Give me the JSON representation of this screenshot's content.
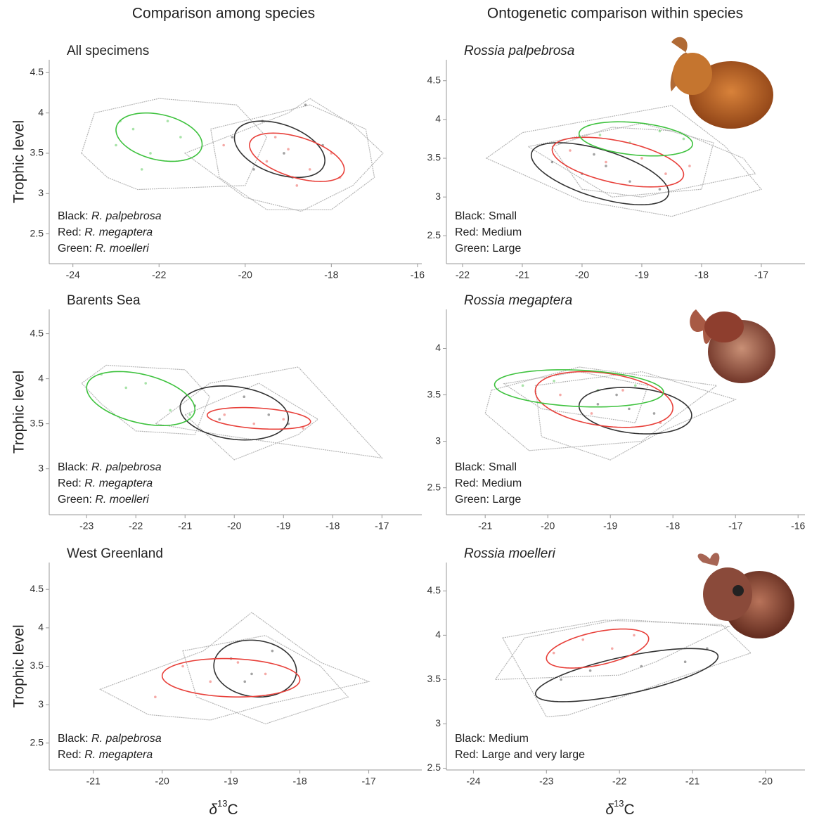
{
  "column_titles": [
    "Comparison among species",
    "Ontogenetic comparison within species"
  ],
  "y_label": "Trophic level",
  "x_label": {
    "symbol": "δ",
    "superscript": "13",
    "element": "C"
  },
  "chart_data": [
    {
      "type": "scatter",
      "title": "All specimens",
      "title_italic": false,
      "legend": [
        {
          "label": "Black: ",
          "name": "R. palpebrosa"
        },
        {
          "label": "Red: ",
          "name": "R. megaptera"
        },
        {
          "label": "Green: ",
          "name": "R. moelleri"
        }
      ],
      "xlim": [
        -24.55,
        -15.9
      ],
      "xticks": [
        -24,
        -22,
        -20,
        -18,
        -16
      ],
      "ylim": [
        2.13,
        4.66
      ],
      "yticks": [
        2.5,
        3.0,
        3.5,
        4.0,
        4.5
      ],
      "groups": [
        {
          "color": "#333333",
          "ellipse": {
            "cx": -19.2,
            "cy": 3.55,
            "rx": 1.05,
            "ry": 0.35,
            "rho": -0.4
          },
          "hull": {
            "x": [
              -21.4,
              -19,
              -18.5,
              -17.5,
              -16.8,
              -17.5,
              -18.7,
              -20
            ],
            "y": [
              3.5,
              4.0,
              4.18,
              3.85,
              3.5,
              3.1,
              2.78,
              2.95
            ]
          },
          "points": {
            "x": [
              -20.3,
              -19.6,
              -19.1,
              -18.6,
              -18.2,
              -19.8,
              -18.9
            ],
            "y": [
              3.7,
              3.9,
              3.5,
              4.1,
              3.6,
              3.3,
              3.2
            ]
          }
        },
        {
          "color": "#e8403a",
          "ellipse": {
            "cx": -18.8,
            "cy": 3.45,
            "rx": 1.1,
            "ry": 0.3,
            "rho": -0.5
          },
          "hull": {
            "x": [
              -20.8,
              -18.5,
              -17.2,
              -17,
              -18,
              -19.5,
              -20.6
            ],
            "y": [
              3.8,
              4.1,
              3.8,
              3.2,
              2.8,
              2.8,
              3.2
            ]
          },
          "points": {
            "x": [
              -20.5,
              -19.5,
              -19,
              -18.5,
              -18,
              -17.8,
              -18.8,
              -19.3
            ],
            "y": [
              3.6,
              3.4,
              3.55,
              3.3,
              3.5,
              3.2,
              3.1,
              3.7
            ]
          }
        },
        {
          "color": "#3ec23e",
          "ellipse": {
            "cx": -22,
            "cy": 3.7,
            "rx": 1.0,
            "ry": 0.3,
            "rho": -0.3
          },
          "hull": {
            "x": [
              -23.8,
              -23.5,
              -22,
              -20.2,
              -19.5,
              -20,
              -22.5,
              -23.2
            ],
            "y": [
              3.5,
              4.0,
              4.18,
              4.1,
              3.7,
              3.1,
              3.05,
              3.2
            ]
          },
          "points": {
            "x": [
              -23,
              -22.6,
              -22.2,
              -21.8,
              -21.5,
              -22.9,
              -22.4
            ],
            "y": [
              3.6,
              3.8,
              3.5,
              3.9,
              3.7,
              3.9,
              3.3
            ]
          }
        }
      ]
    },
    {
      "type": "scatter",
      "title": "Rossia palpebrosa",
      "title_italic": true,
      "legend": [
        {
          "label": "Black: Small"
        },
        {
          "label": "Red: Medium"
        },
        {
          "label": "Green: Large"
        }
      ],
      "xlim": [
        -22.27,
        -16.27
      ],
      "xticks": [
        -22,
        -21,
        -20,
        -19,
        -18,
        -17
      ],
      "ylim": [
        2.14,
        4.77
      ],
      "yticks": [
        2.5,
        3.0,
        3.5,
        4.0,
        4.5
      ],
      "groups": [
        {
          "color": "#333333",
          "ellipse": {
            "cx": -19.7,
            "cy": 3.3,
            "rx": 1.15,
            "ry": 0.4,
            "rho": -0.6
          },
          "hull": {
            "x": [
              -21.6,
              -21,
              -18.5,
              -17.6,
              -17,
              -18.5,
              -20
            ],
            "y": [
              3.5,
              3.83,
              4.18,
              3.65,
              3.1,
              2.75,
              2.95
            ]
          },
          "points": {
            "x": [
              -20.5,
              -20,
              -19.6,
              -19.2,
              -18.7,
              -19.8
            ],
            "y": [
              3.45,
              3.3,
              3.4,
              3.2,
              3.1,
              3.55
            ]
          }
        },
        {
          "color": "#e8403a",
          "ellipse": {
            "cx": -19.4,
            "cy": 3.45,
            "rx": 1.1,
            "ry": 0.32,
            "rho": -0.5
          },
          "hull": {
            "x": [
              -20.9,
              -19,
              -17.8,
              -18,
              -19.5
            ],
            "y": [
              3.65,
              3.95,
              3.7,
              3.1,
              3.0
            ]
          },
          "points": {
            "x": [
              -20.2,
              -19.6,
              -19,
              -18.6,
              -18.2
            ],
            "y": [
              3.6,
              3.45,
              3.5,
              3.3,
              3.4
            ]
          }
        },
        {
          "color": "#3ec23e",
          "ellipse": {
            "cx": -19.1,
            "cy": 3.75,
            "rx": 0.95,
            "ry": 0.22,
            "rho": -0.3
          },
          "hull": {
            "x": [
              -20.5,
              -19.5,
              -18.4,
              -17.3,
              -17.1,
              -19,
              -20
            ],
            "y": [
              3.65,
              3.9,
              3.85,
              3.5,
              3.3,
              3.0,
              3.1
            ]
          },
          "points": {
            "x": [
              -19.7,
              -19.2,
              -18.7,
              -18.3
            ],
            "y": [
              3.8,
              3.7,
              3.85,
              3.75
            ]
          }
        }
      ]
    },
    {
      "type": "scatter",
      "title": "Barents Sea",
      "title_italic": false,
      "legend": [
        {
          "label": "Black: ",
          "name": "R. palpebrosa"
        },
        {
          "label": "Red: ",
          "name": "R. megaptera"
        },
        {
          "label": "Green: ",
          "name": "R. moelleri"
        }
      ],
      "xlim": [
        -23.76,
        -16.19
      ],
      "xticks": [
        -23,
        -22,
        -21,
        -20,
        -19,
        -18,
        -17
      ],
      "ylim": [
        2.49,
        4.77
      ],
      "yticks": [
        3.0,
        3.5,
        4.0,
        4.5
      ],
      "groups": [
        {
          "color": "#333333",
          "ellipse": {
            "cx": -20,
            "cy": 3.62,
            "rx": 1.1,
            "ry": 0.3,
            "rho": -0.2
          },
          "hull": {
            "x": [
              -21.6,
              -20.5,
              -18.7,
              -17,
              -20.2
            ],
            "y": [
              3.5,
              3.95,
              4.13,
              3.12,
              3.37
            ]
          },
          "points": {
            "x": [
              -20.8,
              -20.3,
              -19.8,
              -19.3,
              -18.9
            ],
            "y": [
              3.7,
              3.55,
              3.8,
              3.6,
              3.5
            ]
          }
        },
        {
          "color": "#e8403a",
          "ellipse": {
            "cx": -19.5,
            "cy": 3.56,
            "rx": 1.05,
            "ry": 0.12,
            "rho": -0.3
          },
          "hull": {
            "x": [
              -21,
              -19.5,
              -18.3,
              -18.7,
              -20
            ],
            "y": [
              3.6,
              3.95,
              3.55,
              3.38,
              3.1
            ]
          },
          "points": {
            "x": [
              -20.2,
              -19.6,
              -19,
              -18.6
            ],
            "y": [
              3.6,
              3.5,
              3.55,
              3.45
            ]
          }
        },
        {
          "color": "#3ec23e",
          "ellipse": {
            "cx": -21.9,
            "cy": 3.78,
            "rx": 1.1,
            "ry": 0.3,
            "rho": -0.4
          },
          "hull": {
            "x": [
              -23.1,
              -22.6,
              -21,
              -20.5,
              -20.8,
              -22,
              -22.7
            ],
            "y": [
              3.95,
              4.15,
              4.1,
              3.8,
              3.38,
              3.42,
              3.72
            ]
          },
          "points": {
            "x": [
              -22.7,
              -22.2,
              -21.8,
              -21.3,
              -20.9
            ],
            "y": [
              4.05,
              3.9,
              3.95,
              3.65,
              3.6
            ]
          }
        }
      ]
    },
    {
      "type": "scatter",
      "title": "Rossia megaptera",
      "title_italic": true,
      "legend": [
        {
          "label": "Black: Small"
        },
        {
          "label": "Red: Medium"
        },
        {
          "label": "Green: Large"
        }
      ],
      "xlim": [
        -21.62,
        -15.89
      ],
      "xticks": [
        -21,
        -20,
        -19,
        -18,
        -17,
        -16
      ],
      "ylim": [
        2.21,
        4.42
      ],
      "yticks": [
        2.5,
        3.0,
        3.5,
        4.0
      ],
      "groups": [
        {
          "color": "#333333",
          "ellipse": {
            "cx": -18.6,
            "cy": 3.33,
            "rx": 0.9,
            "ry": 0.25,
            "rho": -0.2
          },
          "hull": {
            "x": [
              -20.7,
              -19.5,
              -18.4,
              -18.6,
              -20.1
            ],
            "y": [
              3.62,
              3.75,
              3.6,
              3.2,
              3.35
            ]
          },
          "points": {
            "x": [
              -19.2,
              -18.7,
              -18.3,
              -18.9
            ],
            "y": [
              3.4,
              3.35,
              3.3,
              3.5
            ]
          }
        },
        {
          "color": "#e8403a",
          "ellipse": {
            "cx": -19.1,
            "cy": 3.45,
            "rx": 1.1,
            "ry": 0.3,
            "rho": -0.3
          },
          "hull": {
            "x": [
              -20.2,
              -18.5,
              -17,
              -18.2,
              -19,
              -20.1
            ],
            "y": [
              3.6,
              3.75,
              3.45,
              3.1,
              2.8,
              3.05
            ]
          },
          "points": {
            "x": [
              -19.8,
              -19.3,
              -18.8,
              -18.2
            ],
            "y": [
              3.5,
              3.3,
              3.55,
              3.2
            ]
          }
        },
        {
          "color": "#3ec23e",
          "ellipse": {
            "cx": -19.5,
            "cy": 3.57,
            "rx": 1.35,
            "ry": 0.2,
            "rho": -0.2
          },
          "hull": {
            "x": [
              -20.9,
              -19.5,
              -17.3,
              -18.5,
              -20.3,
              -21
            ],
            "y": [
              3.55,
              3.8,
              3.6,
              3.0,
              2.9,
              3.3
            ]
          },
          "points": {
            "x": [
              -20.4,
              -19.9,
              -19.2,
              -18.6
            ],
            "y": [
              3.6,
              3.65,
              3.55,
              3.6
            ]
          }
        }
      ]
    },
    {
      "type": "scatter",
      "title": "West Greenland",
      "title_italic": false,
      "legend": [
        {
          "label": "Black: ",
          "name": "R. palpebrosa"
        },
        {
          "label": "Red: ",
          "name": "R. megaptera"
        }
      ],
      "xlim": [
        -21.64,
        -16.23
      ],
      "xticks": [
        -21,
        -20,
        -19,
        -18,
        -17
      ],
      "ylim": [
        2.15,
        4.85
      ],
      "yticks": [
        2.5,
        3.0,
        3.5,
        4.0,
        4.5
      ],
      "groups": [
        {
          "color": "#333333",
          "ellipse": {
            "cx": -18.65,
            "cy": 3.47,
            "rx": 0.6,
            "ry": 0.37,
            "rho": -0.1
          },
          "hull": {
            "x": [
              -19.7,
              -18.5,
              -17.7,
              -17.3,
              -18.5,
              -19.5
            ],
            "y": [
              3.7,
              3.9,
              3.5,
              3.1,
              2.75,
              3.1
            ]
          },
          "points": {
            "x": [
              -19,
              -18.7,
              -18.4,
              -18.8
            ],
            "y": [
              3.6,
              3.4,
              3.7,
              3.3
            ]
          }
        },
        {
          "color": "#e8403a",
          "ellipse": {
            "cx": -19.0,
            "cy": 3.35,
            "rx": 1.0,
            "ry": 0.25,
            "rho": -0.1
          },
          "hull": {
            "x": [
              -20.9,
              -19.4,
              -18.7,
              -17.7,
              -17,
              -18.5,
              -19.3,
              -20.2
            ],
            "y": [
              3.2,
              3.7,
              4.2,
              3.55,
              3.3,
              3.0,
              2.8,
              2.87
            ]
          },
          "points": {
            "x": [
              -19.7,
              -19.3,
              -18.9,
              -18.5,
              -20.1
            ],
            "y": [
              3.5,
              3.3,
              3.55,
              3.4,
              3.1
            ]
          }
        }
      ]
    },
    {
      "type": "scatter",
      "title": "Rossia moelleri",
      "title_italic": true,
      "legend": [
        {
          "label": "Black: Medium"
        },
        {
          "label": "Red: Large and very large"
        }
      ],
      "xlim": [
        -24.37,
        -19.46
      ],
      "xticks": [
        -24,
        -23,
        -22,
        -21,
        -20
      ],
      "ylim": [
        2.48,
        4.82
      ],
      "yticks": [
        2.5,
        3.0,
        3.5,
        4.0,
        4.5
      ],
      "groups": [
        {
          "color": "#333333",
          "ellipse": {
            "cx": -21.9,
            "cy": 3.55,
            "rx": 1.25,
            "ry": 0.3,
            "rho": 0.7
          },
          "hull": {
            "x": [
              -23.6,
              -22.2,
              -20.6,
              -20.2,
              -21.8,
              -22.7,
              -23
            ],
            "y": [
              3.97,
              4.17,
              4.12,
              3.8,
              3.35,
              3.1,
              3.08
            ]
          },
          "points": {
            "x": [
              -22.8,
              -22.4,
              -21.7,
              -21.1,
              -20.8
            ],
            "y": [
              3.5,
              3.6,
              3.65,
              3.7,
              3.85
            ]
          }
        },
        {
          "color": "#e8403a",
          "ellipse": {
            "cx": -22.3,
            "cy": 3.85,
            "rx": 0.7,
            "ry": 0.22,
            "rho": 0.5
          },
          "hull": {
            "x": [
              -23.7,
              -23.3,
              -22,
              -20.5,
              -21.5,
              -22
            ],
            "y": [
              3.5,
              3.97,
              4.18,
              4.1,
              3.7,
              3.55
            ]
          },
          "points": {
            "x": [
              -22.9,
              -22.5,
              -22.1,
              -21.8
            ],
            "y": [
              3.8,
              3.95,
              3.85,
              4.0
            ]
          }
        }
      ]
    }
  ]
}
